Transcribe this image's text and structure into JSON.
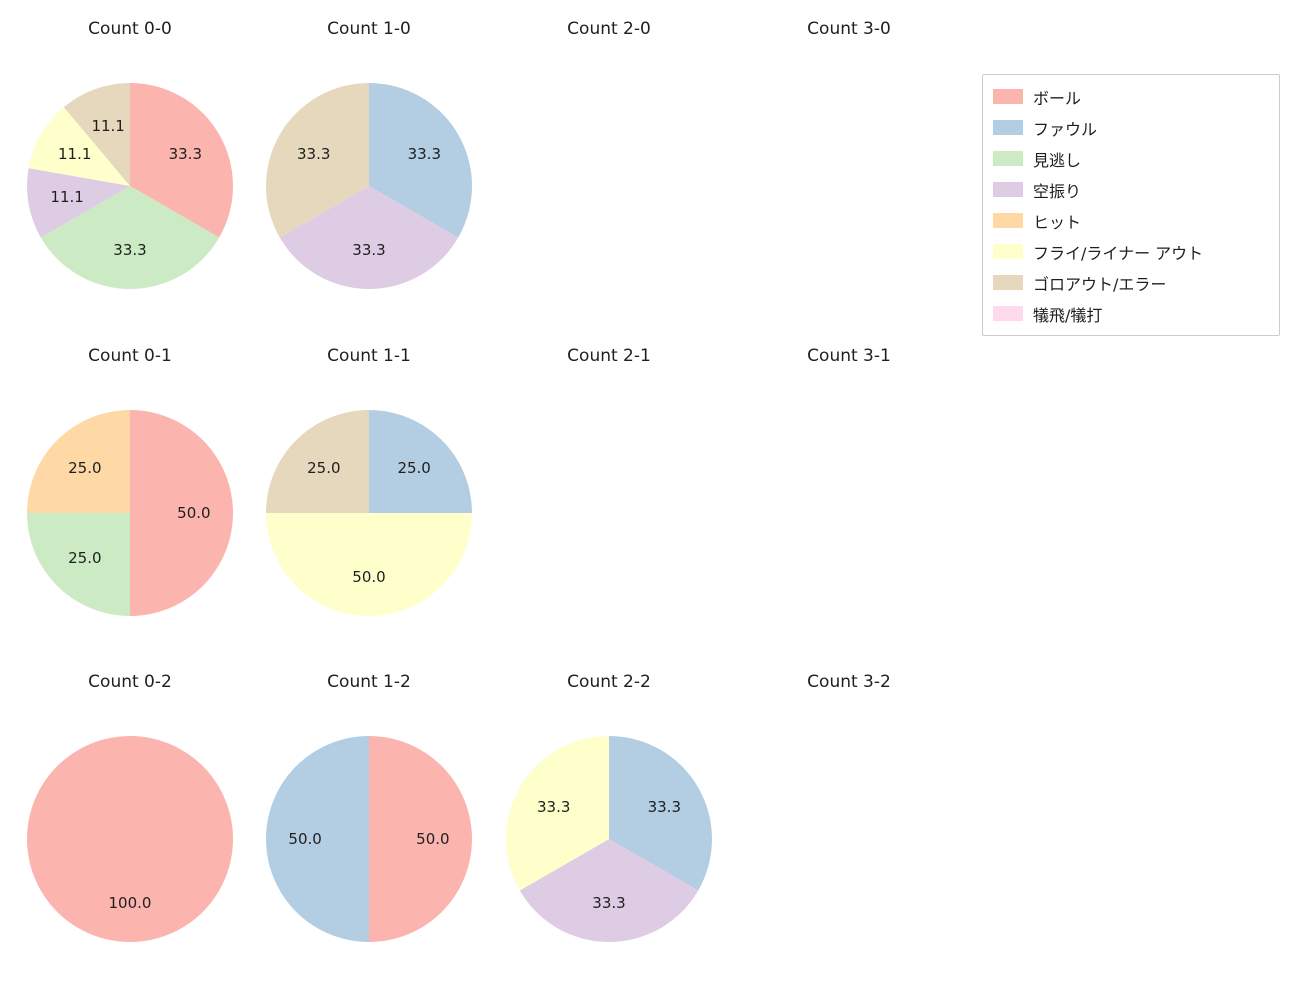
{
  "legend": {
    "items": [
      {
        "label": "ボール",
        "color": "#fbb4ae"
      },
      {
        "label": "ファウル",
        "color": "#b3cde3"
      },
      {
        "label": "見逃し",
        "color": "#ccebc5"
      },
      {
        "label": "空振り",
        "color": "#decbe4"
      },
      {
        "label": "ヒット",
        "color": "#fed9a6"
      },
      {
        "label": "フライ/ライナー アウト",
        "color": "#ffffcc"
      },
      {
        "label": "ゴロアウト/エラー",
        "color": "#e5d8bd"
      },
      {
        "label": "犠飛/犠打",
        "color": "#fddaec"
      }
    ]
  },
  "chart_data": [
    {
      "type": "pie",
      "title": "Count 0-0",
      "start_angle_deg": 0,
      "direction": "clockwise",
      "slices": [
        {
          "category": "ボール",
          "value": 33.3,
          "label": "33.3",
          "color": "#fbb4ae"
        },
        {
          "category": "見逃し",
          "value": 33.3,
          "label": "33.3",
          "color": "#ccebc5"
        },
        {
          "category": "空振り",
          "value": 11.1,
          "label": "11.1",
          "color": "#decbe4"
        },
        {
          "category": "フライ/ライナー アウト",
          "value": 11.1,
          "label": "11.1",
          "color": "#ffffcc"
        },
        {
          "category": "ゴロアウト/エラー",
          "value": 11.1,
          "label": "11.1",
          "color": "#e5d8bd"
        }
      ]
    },
    {
      "type": "pie",
      "title": "Count 1-0",
      "start_angle_deg": 0,
      "direction": "clockwise",
      "slices": [
        {
          "category": "ファウル",
          "value": 33.3,
          "label": "33.3",
          "color": "#b3cde3"
        },
        {
          "category": "空振り",
          "value": 33.3,
          "label": "33.3",
          "color": "#decbe4"
        },
        {
          "category": "ゴロアウト/エラー",
          "value": 33.3,
          "label": "33.3",
          "color": "#e5d8bd"
        }
      ]
    },
    {
      "type": "pie",
      "title": "Count 2-0",
      "start_angle_deg": 0,
      "direction": "clockwise",
      "slices": []
    },
    {
      "type": "pie",
      "title": "Count 3-0",
      "start_angle_deg": 0,
      "direction": "clockwise",
      "slices": []
    },
    {
      "type": "pie",
      "title": "Count 0-1",
      "start_angle_deg": 0,
      "direction": "clockwise",
      "slices": [
        {
          "category": "ボール",
          "value": 50.0,
          "label": "50.0",
          "color": "#fbb4ae"
        },
        {
          "category": "見逃し",
          "value": 25.0,
          "label": "25.0",
          "color": "#ccebc5"
        },
        {
          "category": "ヒット",
          "value": 25.0,
          "label": "25.0",
          "color": "#fed9a6"
        }
      ]
    },
    {
      "type": "pie",
      "title": "Count 1-1",
      "start_angle_deg": 0,
      "direction": "clockwise",
      "slices": [
        {
          "category": "ファウル",
          "value": 25.0,
          "label": "25.0",
          "color": "#b3cde3"
        },
        {
          "category": "フライ/ライナー アウト",
          "value": 50.0,
          "label": "50.0",
          "color": "#ffffcc"
        },
        {
          "category": "ゴロアウト/エラー",
          "value": 25.0,
          "label": "25.0",
          "color": "#e5d8bd"
        }
      ]
    },
    {
      "type": "pie",
      "title": "Count 2-1",
      "start_angle_deg": 0,
      "direction": "clockwise",
      "slices": []
    },
    {
      "type": "pie",
      "title": "Count 3-1",
      "start_angle_deg": 0,
      "direction": "clockwise",
      "slices": []
    },
    {
      "type": "pie",
      "title": "Count 0-2",
      "start_angle_deg": 0,
      "direction": "clockwise",
      "slices": [
        {
          "category": "ボール",
          "value": 100.0,
          "label": "100.0",
          "color": "#fbb4ae"
        }
      ]
    },
    {
      "type": "pie",
      "title": "Count 1-2",
      "start_angle_deg": 0,
      "direction": "clockwise",
      "slices": [
        {
          "category": "ボール",
          "value": 50.0,
          "label": "50.0",
          "color": "#fbb4ae"
        },
        {
          "category": "ファウル",
          "value": 50.0,
          "label": "50.0",
          "color": "#b3cde3"
        }
      ]
    },
    {
      "type": "pie",
      "title": "Count 2-2",
      "start_angle_deg": 0,
      "direction": "clockwise",
      "slices": [
        {
          "category": "ファウル",
          "value": 33.3,
          "label": "33.3",
          "color": "#b3cde3"
        },
        {
          "category": "空振り",
          "value": 33.3,
          "label": "33.3",
          "color": "#decbe4"
        },
        {
          "category": "フライ/ライナー アウト",
          "value": 33.3,
          "label": "33.3",
          "color": "#ffffcc"
        }
      ]
    },
    {
      "type": "pie",
      "title": "Count 3-2",
      "start_angle_deg": 0,
      "direction": "clockwise",
      "slices": []
    }
  ]
}
